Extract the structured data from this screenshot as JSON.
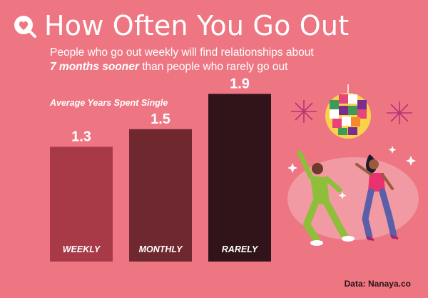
{
  "header": {
    "title": "How Often You Go Out",
    "subtitle_line1": "People who go out weekly will find relationships about",
    "subtitle_em": "7 months sooner",
    "subtitle_rest": " than people who rarely go out"
  },
  "chart_data": {
    "type": "bar",
    "title": "How Often You Go Out",
    "ylabel": "Average Years Spent Single",
    "categories": [
      "WEEKLY",
      "MONTHLY",
      "RARELY"
    ],
    "values": [
      1.3,
      1.5,
      1.9
    ],
    "value_labels": [
      "1.3",
      "1.5",
      "1.9"
    ],
    "ylim": [
      0,
      2.0
    ],
    "grid": false,
    "legend": "none",
    "colors": [
      "#a83a48",
      "#6f2830",
      "#301419"
    ]
  },
  "source": "Data: Nanaya.co",
  "icons": {
    "logo": "heart-search-icon",
    "illustration": "disco-dancers-illustration"
  }
}
